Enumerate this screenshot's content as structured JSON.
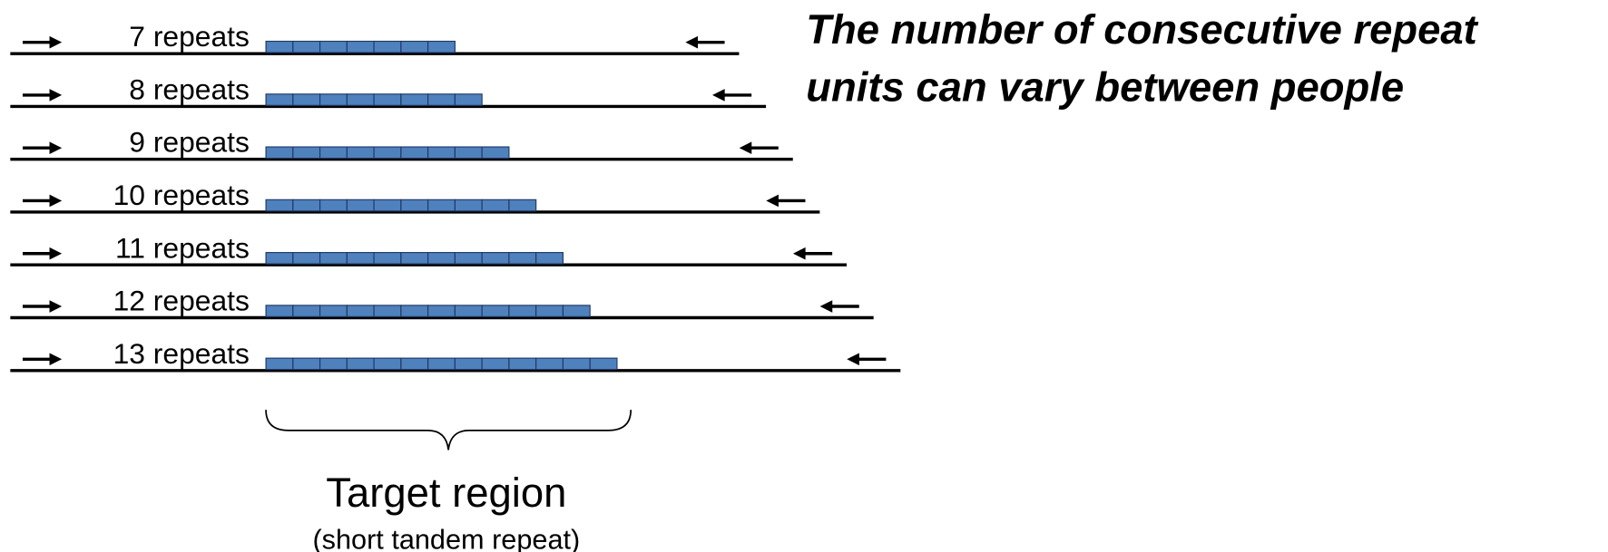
{
  "title": [
    "The number of consecutive repeat",
    "units can vary between people"
  ],
  "rows": [
    {
      "label": "7 repeats",
      "units": 7
    },
    {
      "label": "8 repeats",
      "units": 8
    },
    {
      "label": "9 repeats",
      "units": 9
    },
    {
      "label": "10 repeats",
      "units": 10
    },
    {
      "label": "11 repeats",
      "units": 11
    },
    {
      "label": "12 repeats",
      "units": 12
    },
    {
      "label": "13 repeats",
      "units": 13
    }
  ],
  "target": {
    "label": "Target region",
    "sublabel": "(short tandem repeat)"
  }
}
